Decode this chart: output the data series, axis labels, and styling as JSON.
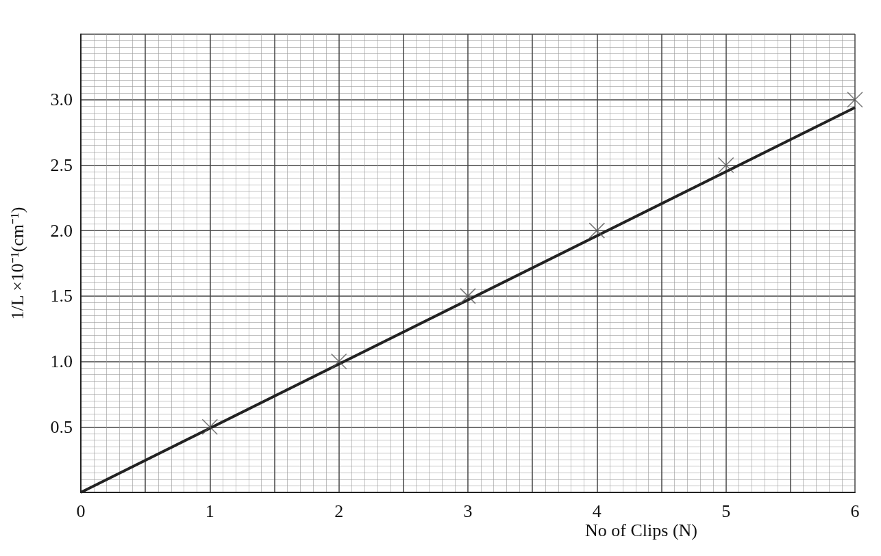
{
  "chart_data": {
    "type": "scatter",
    "xlabel": "No of Clips (N)",
    "ylabel": "1/L ×10⁻¹(cm⁻¹)",
    "x": [
      1,
      2,
      3,
      4,
      5,
      6
    ],
    "xlim": [
      0,
      6
    ],
    "ylim": [
      0,
      3.5
    ],
    "xticks": [
      0,
      1,
      2,
      3,
      4,
      5,
      6
    ],
    "yticks": [
      0.5,
      {
        "value": 1,
        "label": "1.0"
      },
      1.5,
      {
        "value": 2,
        "label": "2.0"
      },
      2.5,
      {
        "value": 3,
        "label": "3.0"
      }
    ],
    "grid": true,
    "marker": "cross",
    "series": [
      {
        "color": "#555555",
        "values": [
          0.5,
          1.0,
          1.5,
          2.0,
          2.5,
          3.0
        ]
      },
      {
        "type": "line",
        "color": "#222222",
        "x": [
          0,
          6
        ],
        "values": [
          0,
          2.94
        ],
        "marker": "none",
        "line_style": "solid"
      }
    ]
  }
}
